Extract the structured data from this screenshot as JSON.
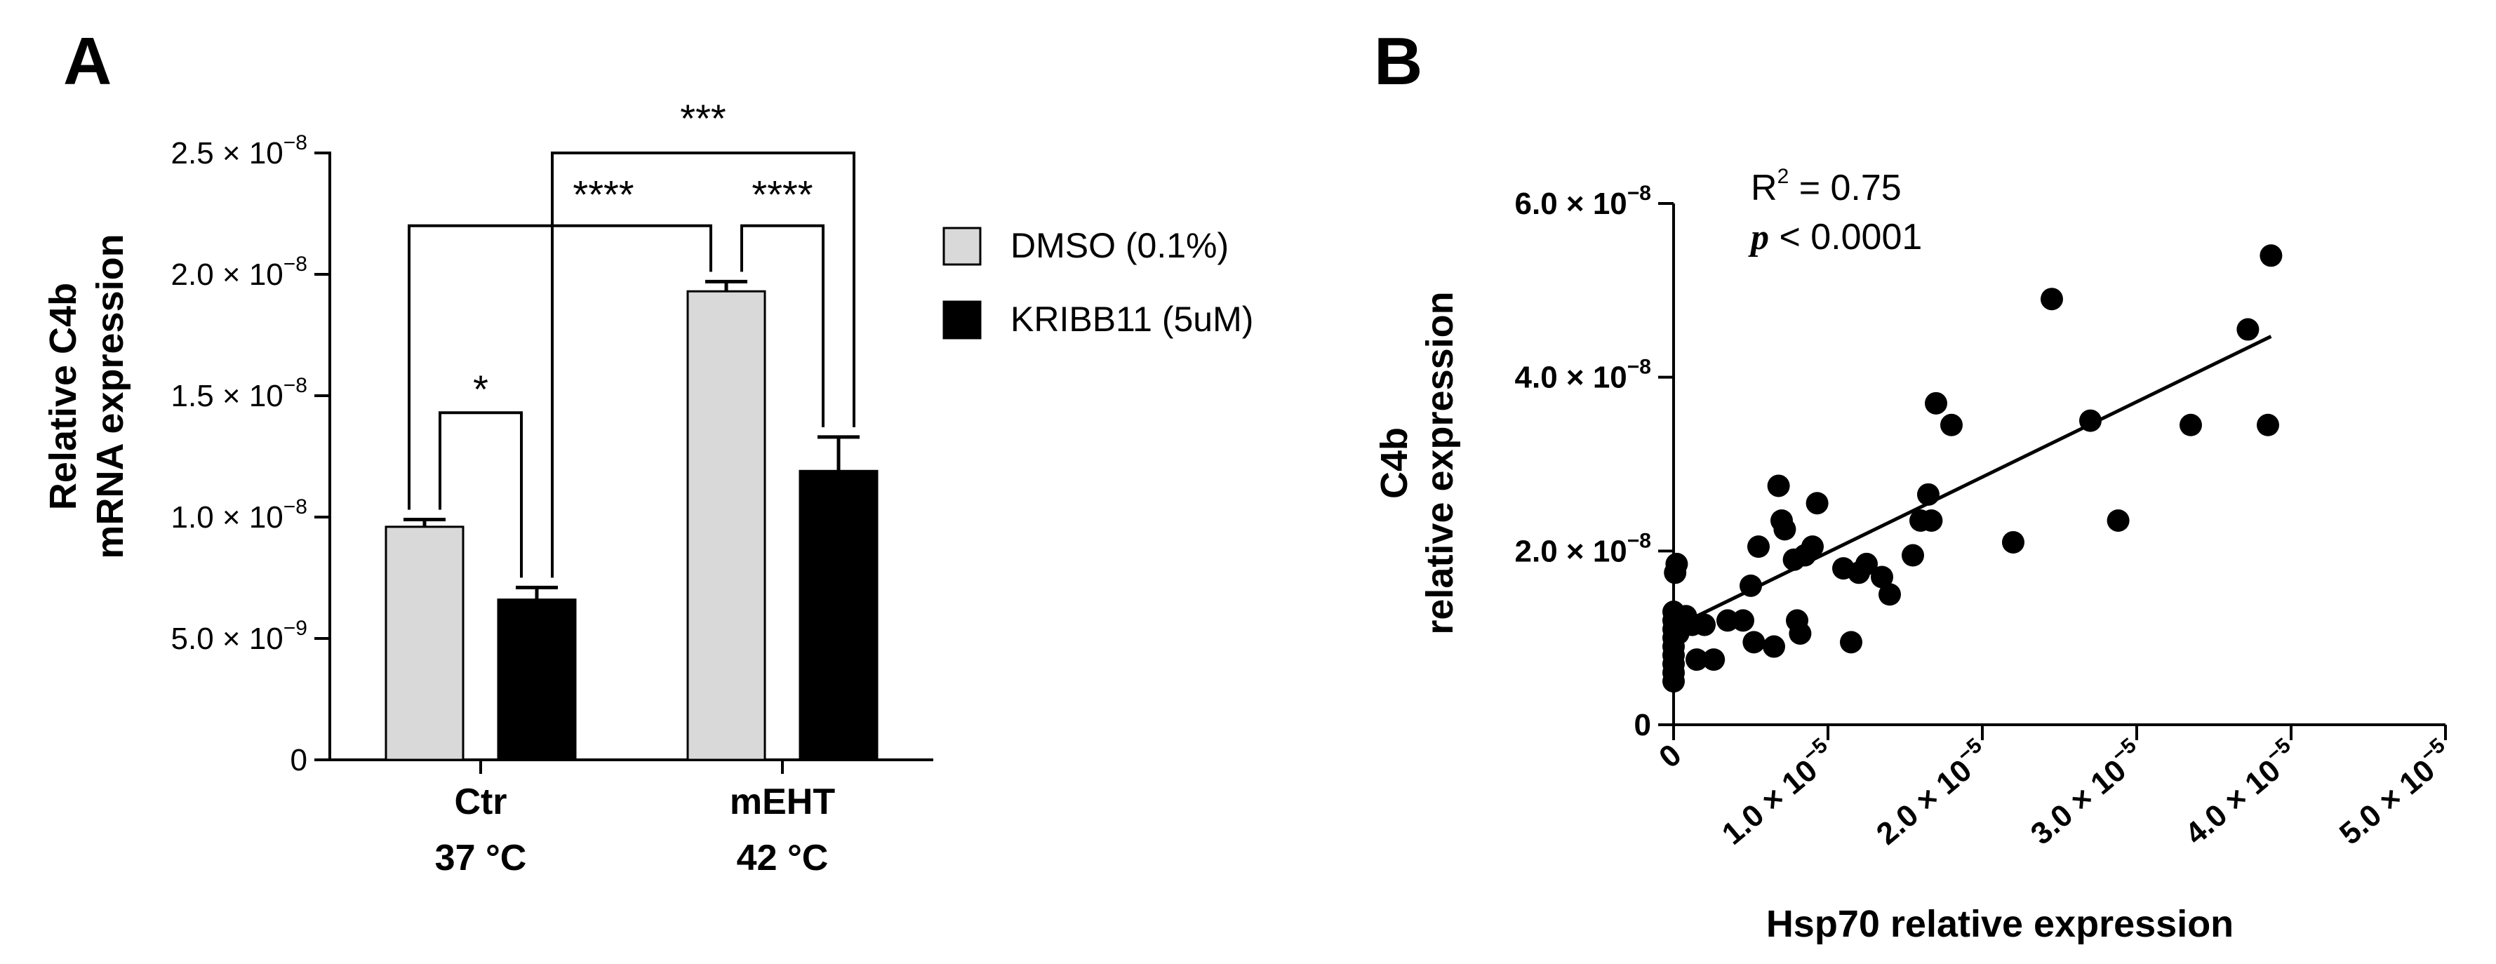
{
  "chart_data": [
    {
      "type": "bar",
      "panel_label": "A",
      "ylabel_line1": "Relative C4b",
      "ylabel_line2": "mRNA expression",
      "ylim": [
        0,
        2.5e-08
      ],
      "yticks": [
        {
          "value": 0,
          "mant": "0",
          "exp": ""
        },
        {
          "value": 5e-09,
          "mant": "5.0 × 10",
          "exp": "−9"
        },
        {
          "value": 1e-08,
          "mant": "1.0 × 10",
          "exp": "−8"
        },
        {
          "value": 1.5e-08,
          "mant": "1.5 × 10",
          "exp": "−8"
        },
        {
          "value": 2e-08,
          "mant": "2.0 × 10",
          "exp": "−8"
        },
        {
          "value": 2.5e-08,
          "mant": "2.5 × 10",
          "exp": "−8"
        }
      ],
      "groups": [
        {
          "line1": "Ctr",
          "line2": "37 °C"
        },
        {
          "line1": "mEHT",
          "line2": "42 °C"
        }
      ],
      "series": [
        {
          "name": "DMSO (0.1%)",
          "color": "#d9d9d9",
          "values": [
            9.6e-09,
            1.93e-08
          ],
          "errors": [
            3e-10,
            4e-10
          ]
        },
        {
          "name": "KRIBB11 (5uM)",
          "color": "#000000",
          "values": [
            6.6e-09,
            1.19e-08
          ],
          "errors": [
            5e-10,
            1.4e-09
          ]
        }
      ],
      "legend_position": "right",
      "significance": [
        {
          "label": "*",
          "from": [
            0,
            0
          ],
          "to": [
            0,
            1
          ],
          "level": 1.43e-08
        },
        {
          "label": "****",
          "from": [
            0,
            0
          ],
          "to": [
            1,
            0
          ],
          "level": 2.2e-08
        },
        {
          "label": "****",
          "from": [
            1,
            0
          ],
          "to": [
            1,
            1
          ],
          "level": 2.2e-08
        },
        {
          "label": "***",
          "from": [
            0,
            1
          ],
          "to": [
            1,
            1
          ],
          "level": 2.5e-08
        }
      ]
    },
    {
      "type": "scatter",
      "panel_label": "B",
      "ylabel_line1": "C4b",
      "ylabel_line2": "relative expression",
      "xlabel": "Hsp70 relative expression",
      "xlim": [
        0,
        5e-05
      ],
      "ylim": [
        0,
        6e-08
      ],
      "xticks": [
        {
          "value": 0,
          "mant": "0",
          "exp": ""
        },
        {
          "value": 1e-05,
          "mant": "1.0 × 10",
          "exp": "−5"
        },
        {
          "value": 2e-05,
          "mant": "2.0 × 10",
          "exp": "−5"
        },
        {
          "value": 3e-05,
          "mant": "3.0 × 10",
          "exp": "−5"
        },
        {
          "value": 4e-05,
          "mant": "4.0 × 10",
          "exp": "−5"
        },
        {
          "value": 5e-05,
          "mant": "5.0 × 10",
          "exp": "−5"
        }
      ],
      "yticks": [
        {
          "value": 0,
          "mant": "0",
          "exp": ""
        },
        {
          "value": 2e-08,
          "mant": "2.0 × 10",
          "exp": "−8"
        },
        {
          "value": 4e-08,
          "mant": "4.0 × 10",
          "exp": "−8"
        },
        {
          "value": 6e-08,
          "mant": "6.0 × 10",
          "exp": "−8"
        }
      ],
      "stats": {
        "r2_prefix": "R",
        "r2_exp": "2",
        "r2_value": " = 0.75",
        "p_symbol": "p",
        "p_value": " < 0.0001"
      },
      "fit_line": {
        "x": [
          0,
          3.87e-05
        ],
        "y": [
          1.12e-08,
          4.47e-08
        ]
      },
      "points": [
        [
          0,
          5e-09
        ],
        [
          0,
          6e-09
        ],
        [
          0,
          7e-09
        ],
        [
          0,
          8e-09
        ],
        [
          0,
          9e-09
        ],
        [
          0,
          1e-08
        ],
        [
          0,
          1.1e-08
        ],
        [
          0,
          1.2e-08
        ],
        [
          0,
          1.3e-08
        ],
        [
          1e-07,
          1.75e-08
        ],
        [
          2e-07,
          1.85e-08
        ],
        [
          3e-07,
          1.25e-08
        ],
        [
          3e-07,
          1.05e-08
        ],
        [
          8e-07,
          1.25e-08
        ],
        [
          1.2e-06,
          1.15e-08
        ],
        [
          1.5e-06,
          7.5e-09
        ],
        [
          2e-06,
          1.15e-08
        ],
        [
          2.6e-06,
          7.5e-09
        ],
        [
          3.5e-06,
          1.2e-08
        ],
        [
          4.5e-06,
          1.2e-08
        ],
        [
          5e-06,
          1.6e-08
        ],
        [
          5.2e-06,
          9.5e-09
        ],
        [
          5.5e-06,
          2.05e-08
        ],
        [
          6.5e-06,
          9e-09
        ],
        [
          6.8e-06,
          2.75e-08
        ],
        [
          7e-06,
          2.35e-08
        ],
        [
          7.2e-06,
          2.25e-08
        ],
        [
          7.8e-06,
          1.9e-08
        ],
        [
          8e-06,
          1.2e-08
        ],
        [
          8.2e-06,
          1.05e-08
        ],
        [
          8.5e-06,
          1.95e-08
        ],
        [
          9e-06,
          2.05e-08
        ],
        [
          9.3e-06,
          2.55e-08
        ],
        [
          1.1e-05,
          1.8e-08
        ],
        [
          1.15e-05,
          9.5e-09
        ],
        [
          1.2e-05,
          1.75e-08
        ],
        [
          1.25e-05,
          1.85e-08
        ],
        [
          1.35e-05,
          1.7e-08
        ],
        [
          1.4e-05,
          1.5e-08
        ],
        [
          1.55e-05,
          1.95e-08
        ],
        [
          1.6e-05,
          2.35e-08
        ],
        [
          1.65e-05,
          2.65e-08
        ],
        [
          1.67e-05,
          2.35e-08
        ],
        [
          1.7e-05,
          3.7e-08
        ],
        [
          1.8e-05,
          3.45e-08
        ],
        [
          2.2e-05,
          2.1e-08
        ],
        [
          2.45e-05,
          4.9e-08
        ],
        [
          2.7e-05,
          3.5e-08
        ],
        [
          2.88e-05,
          2.35e-08
        ],
        [
          3.35e-05,
          3.45e-08
        ],
        [
          3.72e-05,
          4.55e-08
        ],
        [
          3.85e-05,
          3.45e-08
        ],
        [
          3.87e-05,
          5.4e-08
        ]
      ]
    }
  ]
}
